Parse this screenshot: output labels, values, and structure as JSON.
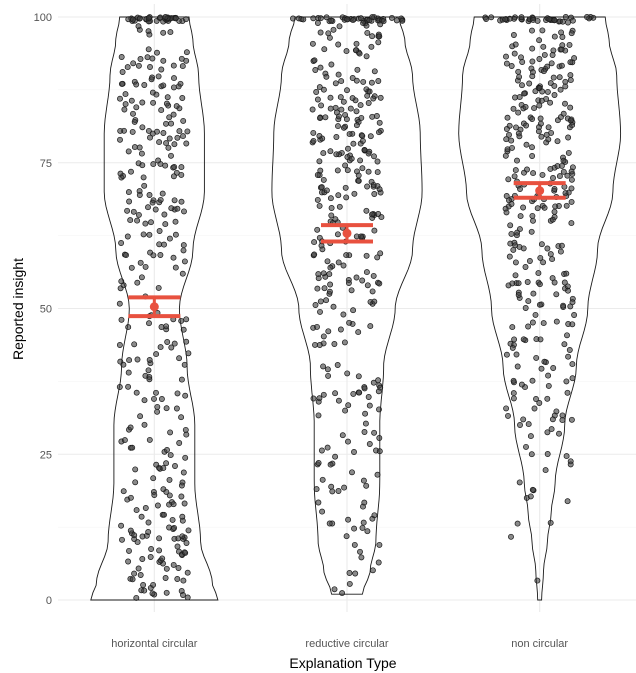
{
  "chart_data": {
    "type": "violin",
    "xlabel": "Explanation Type",
    "ylabel": "Reported insight",
    "ylim": [
      0,
      100
    ],
    "yticks": [
      0,
      25,
      50,
      75,
      100
    ],
    "categories": [
      "horizontal circular",
      "reductive circular",
      "non circular"
    ],
    "grid": true,
    "summary": [
      {
        "category": "horizontal circular",
        "mean": 50.3,
        "ci_low": 48.7,
        "ci_high": 51.9
      },
      {
        "category": "reductive circular",
        "mean": 62.9,
        "ci_low": 61.5,
        "ci_high": 64.3
      },
      {
        "category": "non circular",
        "mean": 70.2,
        "ci_low": 69.0,
        "ci_high": 71.5
      }
    ],
    "violin_profiles": [
      {
        "category": "horizontal circular",
        "y": [
          0,
          3,
          10,
          20,
          30,
          40,
          50,
          60,
          70,
          80,
          90,
          96,
          100
        ],
        "half_width": [
          0.33,
          0.3,
          0.24,
          0.21,
          0.21,
          0.17,
          0.13,
          0.2,
          0.26,
          0.26,
          0.23,
          0.2,
          0.18
        ]
      },
      {
        "category": "reductive circular",
        "y": [
          1,
          5,
          10,
          20,
          30,
          40,
          50,
          60,
          70,
          80,
          90,
          96,
          100
        ],
        "half_width": [
          0.08,
          0.12,
          0.15,
          0.17,
          0.17,
          0.19,
          0.25,
          0.34,
          0.39,
          0.38,
          0.34,
          0.3,
          0.27
        ]
      },
      {
        "category": "non circular",
        "y": [
          0,
          5,
          10,
          15,
          20,
          30,
          40,
          50,
          60,
          70,
          80,
          90,
          96,
          100
        ],
        "half_width": [
          0.01,
          0.02,
          0.04,
          0.06,
          0.08,
          0.13,
          0.19,
          0.25,
          0.3,
          0.38,
          0.42,
          0.4,
          0.36,
          0.34
        ]
      }
    ]
  }
}
